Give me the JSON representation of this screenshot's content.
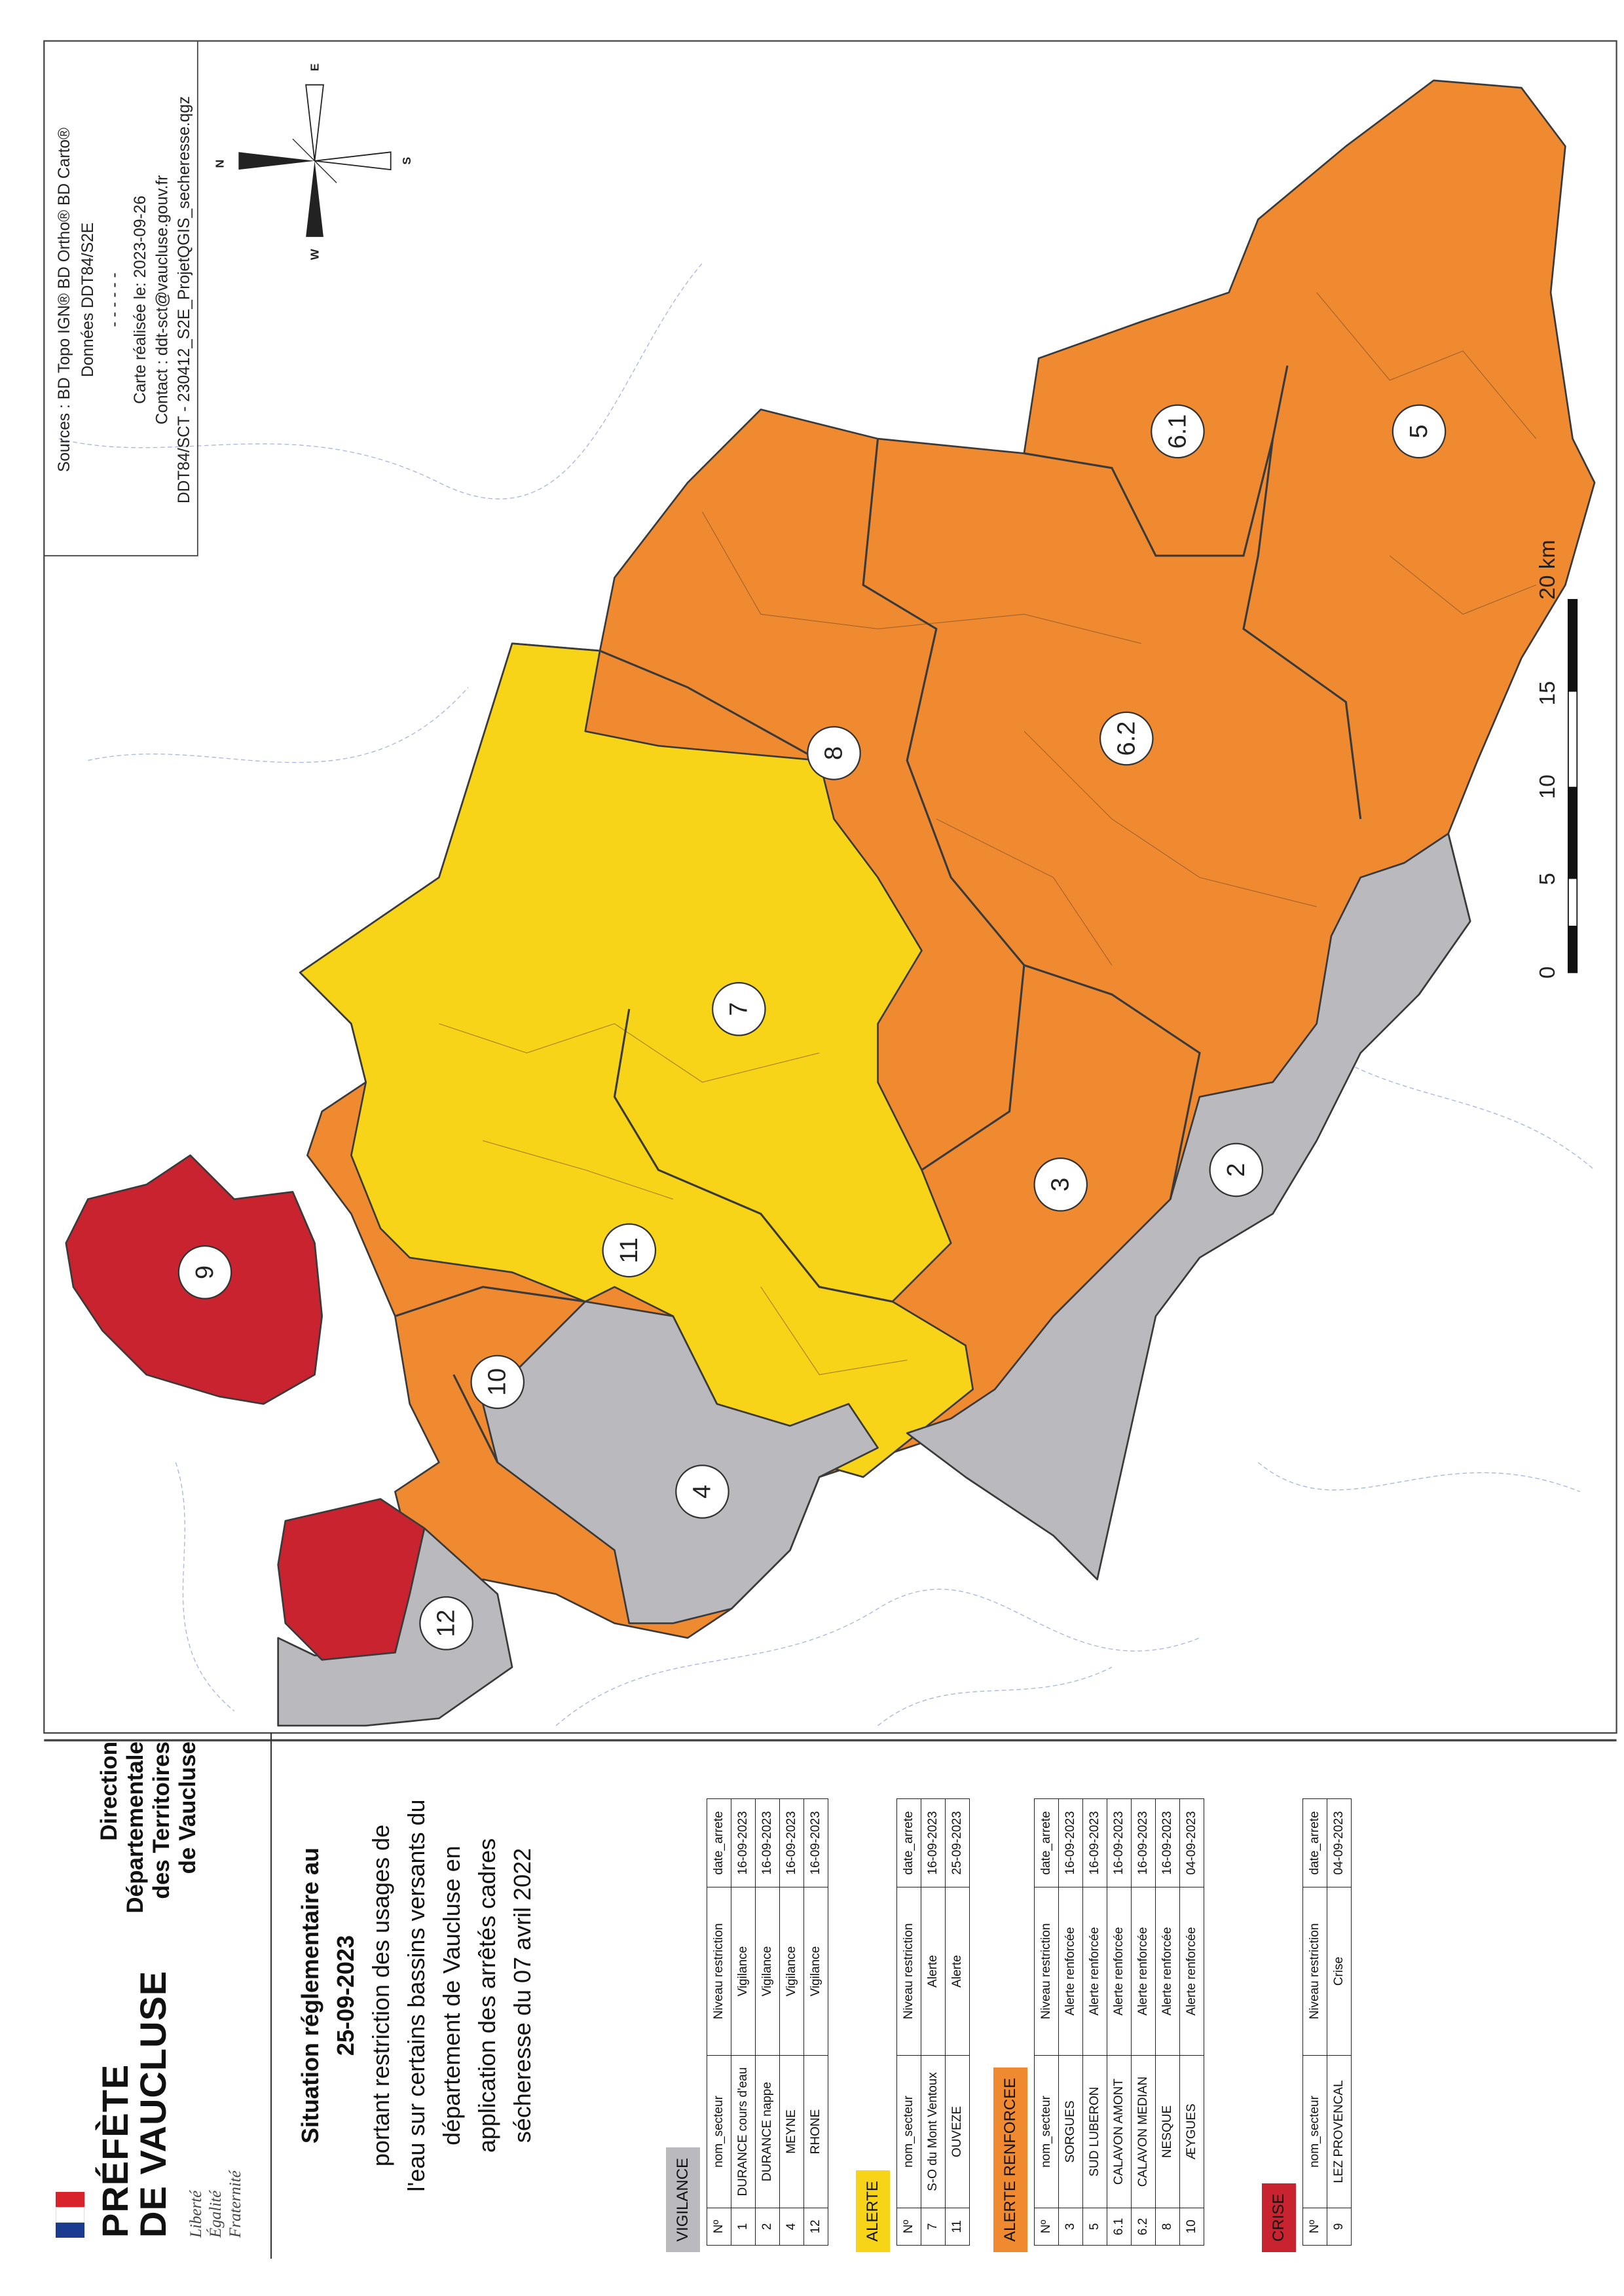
{
  "header": {
    "brand": [
      "PRÉFÈTE",
      "DE VAUCLUSE"
    ],
    "motto": [
      "Liberté",
      "Égalité",
      "Fraternité"
    ],
    "direction": [
      "Direction",
      "Départementale",
      "des Territoires",
      "de Vaucluse"
    ]
  },
  "title": {
    "lines": [
      "Situation réglementaire au",
      "25-09-2023",
      "portant restriction des usages de",
      "l'eau sur certains bassins versants du",
      "département de Vaucluse en",
      "application des arrêtés cadres",
      "sécheresse du 07 avril 2022"
    ]
  },
  "tables": [
    {
      "name": "VIGILANCE",
      "color": "#b9b9be",
      "columns": [
        "Nº",
        "nom_secteur",
        "Niveau restriction",
        "date_arrete"
      ],
      "rows": [
        [
          "1",
          "DURANCE cours d'eau",
          "Vigilance",
          "16-09-2023"
        ],
        [
          "2",
          "DURANCE nappe",
          "Vigilance",
          "16-09-2023"
        ],
        [
          "4",
          "MEYNE",
          "Vigilance",
          "16-09-2023"
        ],
        [
          "12",
          "RHONE",
          "Vigilance",
          "16-09-2023"
        ]
      ]
    },
    {
      "name": "ALERTE",
      "color": "#f7d417",
      "columns": [
        "Nº",
        "nom_secteur",
        "Niveau restriction",
        "date_arrete"
      ],
      "rows": [
        [
          "7",
          "S-O du Mont Ventoux",
          "Alerte",
          "16-09-2023"
        ],
        [
          "11",
          "OUVEZE",
          "Alerte",
          "25-09-2023"
        ]
      ]
    },
    {
      "name": "ALERTE RENFORCEE",
      "color": "#f08a30",
      "columns": [
        "Nº",
        "nom_secteur",
        "Niveau restriction",
        "date_arrete"
      ],
      "rows": [
        [
          "3",
          "SORGUES",
          "Alerte renforcée",
          "16-09-2023"
        ],
        [
          "5",
          "SUD LUBERON",
          "Alerte renforcée",
          "16-09-2023"
        ],
        [
          "6.1",
          "CALAVON AMONT",
          "Alerte renforcée",
          "16-09-2023"
        ],
        [
          "6.2",
          "CALAVON MEDIAN",
          "Alerte renforcée",
          "16-09-2023"
        ],
        [
          "8",
          "NESQUE",
          "Alerte renforcée",
          "16-09-2023"
        ],
        [
          "10",
          "ÆYGUES",
          "Alerte renforcée",
          "04-09-2023"
        ]
      ]
    },
    {
      "name": "CRISE",
      "color": "#c8232e",
      "columns": [
        "Nº",
        "nom_secteur",
        "Niveau restriction",
        "date_arrete"
      ],
      "rows": [
        [
          "9",
          "LEZ PROVENCAL",
          "Crise",
          "04-09-2023"
        ]
      ]
    }
  ],
  "map": {
    "labels": [
      "9",
      "10",
      "12",
      "4",
      "11",
      "7",
      "8",
      "3",
      "2",
      "6.2",
      "6.1",
      "5"
    ],
    "sources": [
      "Sources : BD Topo IGN® BD Ortho® BD Carto®",
      "Données DDT84/S2E",
      "- - - - - -",
      "Carte réalisée le: 2023-09-26",
      "Contact : ddt-sct@vaucluse.gouv.fr",
      "DDT84/SCT - 230412_S2E_ProjetQGIS_secheresse.qgz"
    ],
    "compass": [
      "N",
      "E",
      "S",
      "W"
    ],
    "scale": [
      "0",
      "5",
      "10",
      "15",
      "20 km"
    ]
  }
}
